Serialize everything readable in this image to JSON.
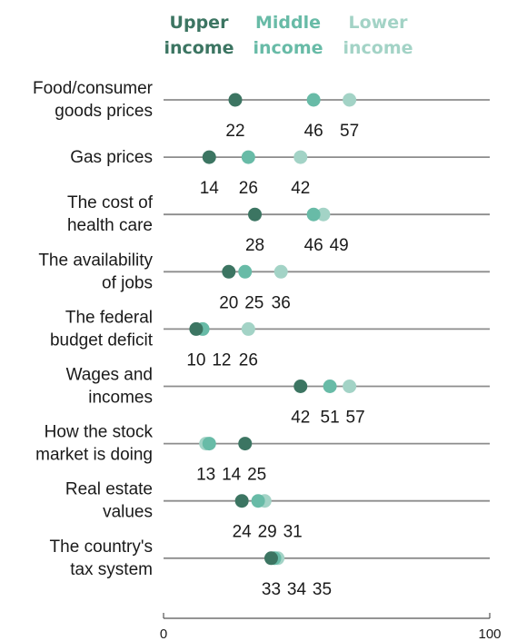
{
  "chart_data": {
    "type": "scatter",
    "style": "dot-plot",
    "legend_placement": "top",
    "xlim": [
      0,
      100
    ],
    "x_ticks": [
      "0",
      "100"
    ],
    "series": [
      {
        "name": "Upper income",
        "legend_lines": [
          "Upper",
          "income"
        ],
        "color": "#3c7562"
      },
      {
        "name": "Middle income",
        "legend_lines": [
          "Middle",
          "income"
        ],
        "color": "#68bba7"
      },
      {
        "name": "Lower income",
        "legend_lines": [
          "Lower",
          "income"
        ],
        "color": "#a3d3c6"
      }
    ],
    "categories": [
      {
        "lines": [
          "Food/consumer",
          "goods prices"
        ],
        "values": [
          22,
          46,
          57
        ]
      },
      {
        "lines": [
          "Gas prices"
        ],
        "values": [
          14,
          26,
          42
        ]
      },
      {
        "lines": [
          "The cost of",
          "health care"
        ],
        "values": [
          28,
          46,
          49
        ]
      },
      {
        "lines": [
          "The availability",
          "of jobs"
        ],
        "values": [
          20,
          25,
          36
        ]
      },
      {
        "lines": [
          "The federal",
          "budget deficit"
        ],
        "values": [
          10,
          12,
          26
        ]
      },
      {
        "lines": [
          "Wages and",
          "incomes"
        ],
        "values": [
          42,
          51,
          57
        ]
      },
      {
        "lines": [
          "How the stock",
          "market is doing"
        ],
        "values": [
          25,
          14,
          13
        ]
      },
      {
        "lines": [
          "Real estate",
          "values"
        ],
        "values": [
          24,
          29,
          31
        ]
      },
      {
        "lines": [
          "The country's",
          "tax system"
        ],
        "values": [
          33,
          34,
          35
        ]
      }
    ]
  }
}
